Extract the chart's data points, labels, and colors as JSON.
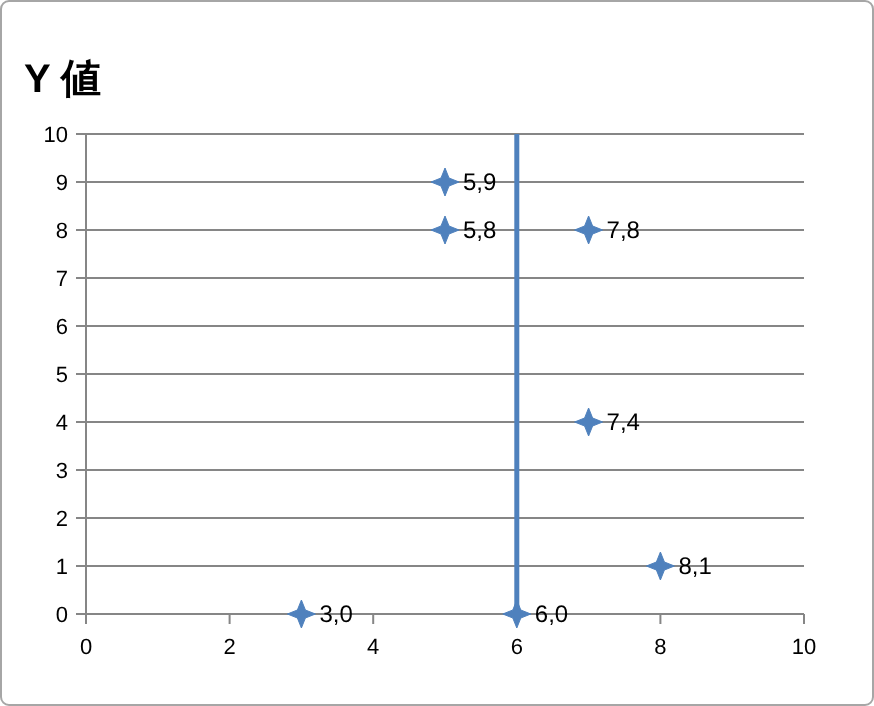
{
  "chart_data": {
    "type": "scatter",
    "title": "Y 値",
    "x": [
      3,
      5,
      5,
      6,
      7,
      7,
      8
    ],
    "series": [
      {
        "color": "#4f81bd",
        "values": [
          0,
          9,
          8,
          0,
          8,
          4,
          1
        ]
      }
    ],
    "annotations": [
      {
        "text": "3,0",
        "x": 3,
        "y": 0
      },
      {
        "text": "5,9",
        "x": 5,
        "y": 9
      },
      {
        "text": "5,8",
        "x": 5,
        "y": 8
      },
      {
        "text": "6,0",
        "x": 6,
        "y": 0
      },
      {
        "text": "7,8",
        "x": 7,
        "y": 8
      },
      {
        "text": "7,4",
        "x": 7,
        "y": 4
      },
      {
        "text": "8,1",
        "x": 8,
        "y": 1
      }
    ],
    "xlim": [
      0,
      10
    ],
    "xticks": [
      0,
      2,
      4,
      6,
      8,
      10
    ],
    "ylim": [
      0,
      10
    ],
    "yticks": [
      0,
      1,
      2,
      3,
      4,
      5,
      6,
      7,
      8,
      9,
      10
    ],
    "grid": "y",
    "marker": "star",
    "ref_lines": [
      {
        "axis": "x",
        "value": 6,
        "color": "#4f81bd"
      }
    ]
  }
}
